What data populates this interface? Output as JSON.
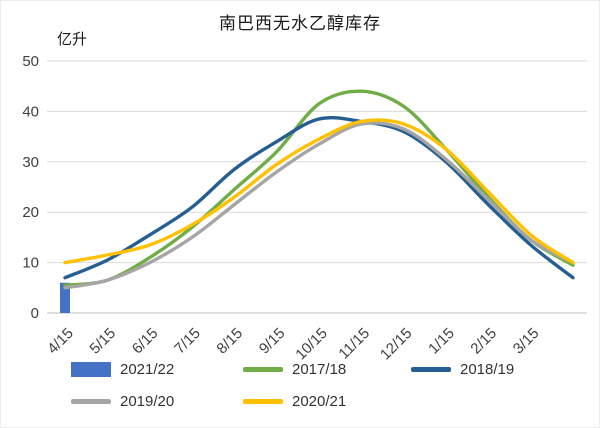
{
  "chart_data": {
    "type": "line",
    "title": "南巴西无水乙醇库存",
    "xlabel": "",
    "ylabel": "亿升",
    "ylim": [
      0,
      50
    ],
    "yticks": [
      0,
      10,
      20,
      30,
      40,
      50
    ],
    "grid": true,
    "legend_position": "bottom",
    "extra_unlabeled_end_point": true,
    "categories": [
      "4/15",
      "5/15",
      "6/15",
      "7/15",
      "8/15",
      "9/15",
      "10/15",
      "11/15",
      "12/15",
      "1/15",
      "2/15",
      "3/15"
    ],
    "series": [
      {
        "name": "2021/22",
        "type": "bar",
        "color": "#4472C4",
        "values": [
          6
        ]
      },
      {
        "name": "2017/18",
        "type": "line",
        "color": "#70AD47",
        "values": [
          5.5,
          6.5,
          11,
          17,
          24.5,
          32,
          41.5,
          44,
          41,
          32.5,
          23,
          14.5,
          9.5
        ]
      },
      {
        "name": "2018/19",
        "type": "line",
        "color": "#255E91",
        "values": [
          7,
          10.5,
          15.5,
          21,
          28.5,
          34,
          38.5,
          38,
          36,
          30,
          21.5,
          13.5,
          7
        ]
      },
      {
        "name": "2019/20",
        "type": "line",
        "color": "#A5A5A5",
        "values": [
          5,
          6.5,
          10,
          15,
          21.5,
          28,
          33.5,
          37.5,
          36.5,
          30.5,
          22.5,
          14.5,
          10
        ]
      },
      {
        "name": "2020/21",
        "type": "line",
        "color": "#FFC000",
        "values": [
          10,
          11.5,
          13.5,
          17.5,
          23,
          29.5,
          34.5,
          38,
          37.5,
          32.5,
          24,
          15.5,
          10
        ]
      }
    ],
    "legend_rows": [
      [
        "2021/22",
        "2017/18",
        "2018/19"
      ],
      [
        "2019/20",
        "2020/21"
      ]
    ]
  }
}
